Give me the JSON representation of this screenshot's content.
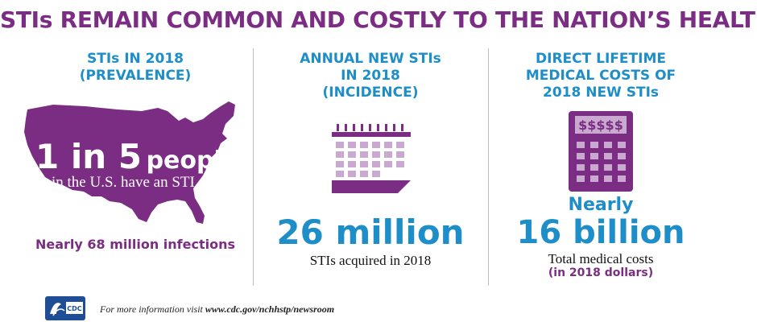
{
  "title": "STIs REMAIN COMMON AND COSTLY TO THE NATION’S HEALTH",
  "colors": {
    "purple": "#7b2d83",
    "blue": "#1e8ec8",
    "light_purple": "#c9a9cf"
  },
  "prevalence": {
    "heading": "STIs IN 2018\n(PREVALENCE)",
    "big_number": "1 in 5",
    "big_word": "people",
    "subtext": "in the U.S. have an STI",
    "infections": "Nearly 68 million infections",
    "icon": "us-map-icon"
  },
  "incidence": {
    "heading": "ANNUAL NEW STIs\nIN 2018\n(INCIDENCE)",
    "metric": "26 million",
    "caption": "STIs acquired in 2018",
    "icon": "calendar-icon"
  },
  "costs": {
    "heading": "DIRECT LIFETIME\nMEDICAL COSTS OF\n2018 NEW STIs",
    "calculator_display": "$$$$$",
    "prefix": "Nearly",
    "metric": "16 billion",
    "caption": "Total medical costs",
    "note": "(in 2018 dollars)",
    "icon": "calculator-icon"
  },
  "footer": {
    "logo_text": "CDC",
    "text_prefix": "For more information visit ",
    "url": "www.cdc.gov/nchhstp/newsroom"
  }
}
